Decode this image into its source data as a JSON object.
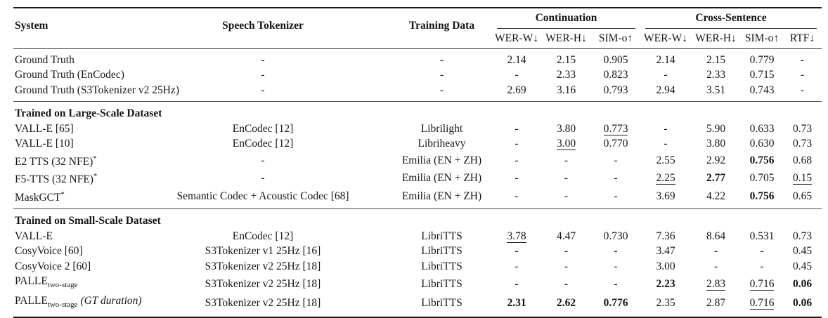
{
  "page": {
    "colors": {
      "text": "#161616",
      "rule_heavy": "#1c1c1c",
      "rule_light": "#4a4a4a",
      "background": "#ffffff"
    }
  },
  "table": {
    "header": {
      "system": "System",
      "speech_tokenizer": "Speech Tokenizer",
      "training_data": "Training Data",
      "group_continuation": "Continuation",
      "group_cross_sentence": "Cross-Sentence",
      "metrics": [
        "WER-W↓",
        "WER-H↓",
        "SIM-o↑",
        "WER-W↓",
        "WER-H↓",
        "SIM-o↑",
        "RTF↓"
      ]
    },
    "sections": [
      {
        "title": "",
        "rows": [
          {
            "system": {
              "text": "Ground Truth"
            },
            "tokenizer": "-",
            "training": "-",
            "values": [
              {
                "t": "2.14"
              },
              {
                "t": "2.15"
              },
              {
                "t": "0.905"
              },
              {
                "t": "2.14"
              },
              {
                "t": "2.15"
              },
              {
                "t": "0.779"
              },
              {
                "t": "-"
              }
            ]
          },
          {
            "system": {
              "text": "Ground Truth (EnCodec)"
            },
            "tokenizer": "-",
            "training": "-",
            "values": [
              {
                "t": "-"
              },
              {
                "t": "2.33"
              },
              {
                "t": "0.823"
              },
              {
                "t": "-"
              },
              {
                "t": "2.33"
              },
              {
                "t": "0.715"
              },
              {
                "t": "-"
              }
            ]
          },
          {
            "system": {
              "text": "Ground Truth (S3Tokenizer v2 25Hz)"
            },
            "tokenizer": "-",
            "training": "-",
            "values": [
              {
                "t": "2.69"
              },
              {
                "t": "3.16"
              },
              {
                "t": "0.793"
              },
              {
                "t": "2.94"
              },
              {
                "t": "3.51"
              },
              {
                "t": "0.743"
              },
              {
                "t": "-"
              }
            ]
          }
        ]
      },
      {
        "title": "Trained on Large-Scale Dataset",
        "rows": [
          {
            "system": {
              "text": "VALL-E [65]"
            },
            "tokenizer": "EnCodec [12]",
            "training": "Librilight",
            "values": [
              {
                "t": "-"
              },
              {
                "t": "3.80"
              },
              {
                "t": "0.773",
                "u": true
              },
              {
                "t": "-"
              },
              {
                "t": "5.90"
              },
              {
                "t": "0.633"
              },
              {
                "t": "0.73"
              }
            ]
          },
          {
            "system": {
              "text": "VALL-E [10]"
            },
            "tokenizer": "EnCodec [12]",
            "training": "Libriheavy",
            "values": [
              {
                "t": "-"
              },
              {
                "t": "3.00",
                "u": true
              },
              {
                "t": "0.770"
              },
              {
                "t": "-"
              },
              {
                "t": "3.80"
              },
              {
                "t": "0.630"
              },
              {
                "t": "0.73"
              }
            ]
          },
          {
            "system": {
              "text": "E2 TTS (32 NFE)",
              "sup": "*"
            },
            "tokenizer": "-",
            "training": "Emilia (EN + ZH)",
            "values": [
              {
                "t": "-"
              },
              {
                "t": "-"
              },
              {
                "t": "-"
              },
              {
                "t": "2.55"
              },
              {
                "t": "2.92"
              },
              {
                "t": "0.756",
                "b": true
              },
              {
                "t": "0.68"
              }
            ]
          },
          {
            "system": {
              "text": "F5-TTS (32 NFE)",
              "sup": "*"
            },
            "tokenizer": "-",
            "training": "Emilia (EN + ZH)",
            "values": [
              {
                "t": "-"
              },
              {
                "t": "-"
              },
              {
                "t": "-"
              },
              {
                "t": "2.25",
                "u": true
              },
              {
                "t": "2.77",
                "b": true
              },
              {
                "t": "0.705"
              },
              {
                "t": "0.15",
                "u": true
              }
            ]
          },
          {
            "system": {
              "text": "MaskGCT",
              "sup": "*"
            },
            "tokenizer": "Semantic Codec + Acoustic Codec [68]",
            "training": "Emilia (EN + ZH)",
            "values": [
              {
                "t": "-"
              },
              {
                "t": "-"
              },
              {
                "t": "-"
              },
              {
                "t": "3.69"
              },
              {
                "t": "4.22"
              },
              {
                "t": "0.756",
                "b": true
              },
              {
                "t": "0.65"
              }
            ]
          }
        ]
      },
      {
        "title": "Trained on Small-Scale Dataset",
        "rows": [
          {
            "system": {
              "text": "VALL-E"
            },
            "tokenizer": "EnCodec [12]",
            "training": "LibriTTS",
            "values": [
              {
                "t": "3.78",
                "u": true
              },
              {
                "t": "4.47"
              },
              {
                "t": "0.730"
              },
              {
                "t": "7.36"
              },
              {
                "t": "8.64"
              },
              {
                "t": "0.531"
              },
              {
                "t": "0.73"
              }
            ]
          },
          {
            "system": {
              "text": "CosyVoice [60]"
            },
            "tokenizer": "S3Tokenizer v1 25Hz [16]",
            "training": "LibriTTS",
            "values": [
              {
                "t": "-"
              },
              {
                "t": "-"
              },
              {
                "t": "-"
              },
              {
                "t": "3.47"
              },
              {
                "t": "-"
              },
              {
                "t": "-"
              },
              {
                "t": "0.45"
              }
            ]
          },
          {
            "system": {
              "text": "CosyVoice 2 [60]"
            },
            "tokenizer": "S3Tokenizer v2 25Hz [18]",
            "training": "LibriTTS",
            "values": [
              {
                "t": "-"
              },
              {
                "t": "-"
              },
              {
                "t": "-"
              },
              {
                "t": "3.00"
              },
              {
                "t": "-"
              },
              {
                "t": "-"
              },
              {
                "t": "0.45"
              }
            ]
          },
          {
            "system": {
              "text": "PALLE",
              "sub": "two-stage"
            },
            "tokenizer": "S3Tokenizer v2 25Hz [18]",
            "training": "LibriTTS",
            "values": [
              {
                "t": "-"
              },
              {
                "t": "-"
              },
              {
                "t": "-"
              },
              {
                "t": "2.23",
                "b": true
              },
              {
                "t": "2.83",
                "u": true
              },
              {
                "t": "0.716",
                "u": true
              },
              {
                "t": "0.06",
                "b": true
              }
            ]
          },
          {
            "system": {
              "text": "PALLE",
              "sub": "two-stage",
              "it": " (GT duration)"
            },
            "tokenizer": "S3Tokenizer v2 25Hz [18]",
            "training": "LibriTTS",
            "values": [
              {
                "t": "2.31",
                "b": true
              },
              {
                "t": "2.62",
                "b": true
              },
              {
                "t": "0.776",
                "b": true
              },
              {
                "t": "2.35"
              },
              {
                "t": "2.87"
              },
              {
                "t": "0.716",
                "u": true
              },
              {
                "t": "0.06",
                "b": true
              }
            ]
          }
        ]
      }
    ]
  }
}
